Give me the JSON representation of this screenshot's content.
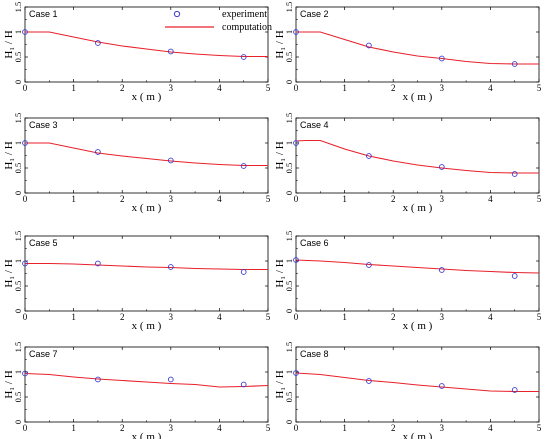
{
  "legend": {
    "experiment_label": "experiment",
    "computation_label": "computation",
    "placement": "top-center"
  },
  "colors": {
    "computation": "#e8202a",
    "experiment": "#3b3bd4",
    "axis": "#000000"
  },
  "chart_data": [
    {
      "type": "line",
      "title": "Case 1",
      "xlabel": "x ( m )",
      "ylabel": "H₁ / H",
      "xlim": [
        0,
        5
      ],
      "ylim": [
        0,
        1.5
      ],
      "xticks": [
        "0",
        "1",
        "2",
        "3",
        "4",
        "5"
      ],
      "yticks": [
        "0",
        "0.5",
        "1",
        "1.5"
      ],
      "series": [
        {
          "name": "computation",
          "x": [
            0,
            0.2,
            0.5,
            1,
            1.5,
            2,
            2.5,
            3,
            3.5,
            4,
            4.5,
            5
          ],
          "y": [
            1.0,
            1.0,
            1.0,
            0.9,
            0.8,
            0.72,
            0.66,
            0.6,
            0.56,
            0.53,
            0.51,
            0.51
          ]
        },
        {
          "name": "experiment",
          "x": [
            0,
            1.5,
            3,
            4.5
          ],
          "y": [
            1.0,
            0.78,
            0.61,
            0.5
          ]
        }
      ]
    },
    {
      "type": "line",
      "title": "Case 2",
      "xlabel": "x ( m )",
      "ylabel": "H₁ / H",
      "xlim": [
        0,
        5
      ],
      "ylim": [
        0,
        1.5
      ],
      "xticks": [
        "0",
        "1",
        "2",
        "3",
        "4",
        "5"
      ],
      "yticks": [
        "0",
        "0.5",
        "1",
        "1.5"
      ],
      "series": [
        {
          "name": "computation",
          "x": [
            0,
            0.2,
            0.5,
            1,
            1.5,
            2,
            2.5,
            3,
            3.5,
            4,
            4.5,
            5
          ],
          "y": [
            1.0,
            1.0,
            1.0,
            0.85,
            0.7,
            0.6,
            0.52,
            0.47,
            0.41,
            0.37,
            0.36,
            0.36
          ]
        },
        {
          "name": "experiment",
          "x": [
            0,
            1.5,
            3,
            4.5
          ],
          "y": [
            1.0,
            0.73,
            0.47,
            0.36
          ]
        }
      ]
    },
    {
      "type": "line",
      "title": "Case 3",
      "xlabel": "x ( m )",
      "ylabel": "H₁ / H",
      "xlim": [
        0,
        5
      ],
      "ylim": [
        0,
        1.5
      ],
      "xticks": [
        "0",
        "1",
        "2",
        "3",
        "4",
        "5"
      ],
      "yticks": [
        "0",
        "0.5",
        "1",
        "1.5"
      ],
      "series": [
        {
          "name": "computation",
          "x": [
            0,
            0.2,
            0.5,
            1,
            1.5,
            2,
            2.5,
            3,
            3.5,
            4,
            4.5,
            5
          ],
          "y": [
            1.0,
            1.0,
            1.0,
            0.9,
            0.8,
            0.74,
            0.69,
            0.64,
            0.6,
            0.57,
            0.55,
            0.55
          ]
        },
        {
          "name": "experiment",
          "x": [
            0,
            1.5,
            3,
            4.5
          ],
          "y": [
            1.0,
            0.82,
            0.65,
            0.54
          ]
        }
      ]
    },
    {
      "type": "line",
      "title": "Case 4",
      "xlabel": "x ( m )",
      "ylabel": "H₁ / H",
      "xlim": [
        0,
        5
      ],
      "ylim": [
        0,
        1.5
      ],
      "xticks": [
        "0",
        "1",
        "2",
        "3",
        "4",
        "5"
      ],
      "yticks": [
        "0",
        "0.5",
        "1",
        "1.5"
      ],
      "series": [
        {
          "name": "computation",
          "x": [
            0,
            0.2,
            0.5,
            1,
            1.5,
            2,
            2.5,
            3,
            3.5,
            4,
            4.5,
            5
          ],
          "y": [
            1.04,
            1.05,
            1.05,
            0.88,
            0.74,
            0.64,
            0.56,
            0.5,
            0.45,
            0.41,
            0.4,
            0.4
          ]
        },
        {
          "name": "experiment",
          "x": [
            0,
            1.5,
            3,
            4.5
          ],
          "y": [
            1.0,
            0.74,
            0.52,
            0.38
          ]
        }
      ]
    },
    {
      "type": "line",
      "title": "Case 5",
      "xlabel": "x ( m )",
      "ylabel": "H₁ / H",
      "xlim": [
        0,
        5
      ],
      "ylim": [
        0,
        1.5
      ],
      "xticks": [
        "0",
        "1",
        "2",
        "3",
        "4",
        "5"
      ],
      "yticks": [
        "0",
        "0.5",
        "1",
        "1.5"
      ],
      "series": [
        {
          "name": "computation",
          "x": [
            0,
            0.5,
            1,
            1.5,
            2,
            2.5,
            3,
            3.5,
            4,
            4.5,
            5
          ],
          "y": [
            0.95,
            0.95,
            0.94,
            0.92,
            0.9,
            0.88,
            0.87,
            0.85,
            0.84,
            0.83,
            0.83
          ]
        },
        {
          "name": "experiment",
          "x": [
            0,
            1.5,
            3,
            4.5
          ],
          "y": [
            0.95,
            0.95,
            0.88,
            0.78
          ]
        }
      ]
    },
    {
      "type": "line",
      "title": "Case 6",
      "xlabel": "x ( m )",
      "ylabel": "H₁ / H",
      "xlim": [
        0,
        5
      ],
      "ylim": [
        0,
        1.5
      ],
      "xticks": [
        "0",
        "1",
        "2",
        "3",
        "4",
        "5"
      ],
      "yticks": [
        "0",
        "0.5",
        "1",
        "1.5"
      ],
      "series": [
        {
          "name": "computation",
          "x": [
            0,
            0.5,
            1,
            1.5,
            2,
            2.5,
            3,
            3.5,
            4,
            4.5,
            5
          ],
          "y": [
            1.02,
            1.0,
            0.97,
            0.93,
            0.9,
            0.87,
            0.84,
            0.81,
            0.79,
            0.77,
            0.76
          ]
        },
        {
          "name": "experiment",
          "x": [
            0,
            1.5,
            3,
            4.5
          ],
          "y": [
            1.02,
            0.92,
            0.82,
            0.7
          ]
        }
      ]
    },
    {
      "type": "line",
      "title": "Case 7",
      "xlabel": "x ( m )",
      "ylabel": "H₁ / H",
      "xlim": [
        0,
        5
      ],
      "ylim": [
        0,
        1.5
      ],
      "xticks": [
        "0",
        "1",
        "2",
        "3",
        "4",
        "5"
      ],
      "yticks": [
        "0",
        "0.5",
        "1",
        "1.5"
      ],
      "series": [
        {
          "name": "computation",
          "x": [
            0,
            0.5,
            1,
            1.5,
            2,
            2.5,
            3,
            3.5,
            4,
            4.5,
            5
          ],
          "y": [
            0.97,
            0.95,
            0.9,
            0.86,
            0.83,
            0.8,
            0.77,
            0.75,
            0.7,
            0.71,
            0.73
          ]
        },
        {
          "name": "experiment",
          "x": [
            0,
            1.5,
            3,
            4.5
          ],
          "y": [
            0.97,
            0.85,
            0.85,
            0.75
          ]
        }
      ]
    },
    {
      "type": "line",
      "title": "Case 8",
      "xlabel": "x ( m )",
      "ylabel": "H₁ / H",
      "xlim": [
        0,
        5
      ],
      "ylim": [
        0,
        1.5
      ],
      "xticks": [
        "0",
        "1",
        "2",
        "3",
        "4",
        "5"
      ],
      "yticks": [
        "0",
        "0.5",
        "1",
        "1.5"
      ],
      "series": [
        {
          "name": "computation",
          "x": [
            0,
            0.5,
            1,
            1.5,
            2,
            2.5,
            3,
            3.5,
            4,
            4.5,
            5
          ],
          "y": [
            0.98,
            0.95,
            0.89,
            0.83,
            0.79,
            0.74,
            0.7,
            0.66,
            0.62,
            0.61,
            0.61
          ]
        },
        {
          "name": "experiment",
          "x": [
            0,
            1.5,
            3,
            4.5
          ],
          "y": [
            0.98,
            0.82,
            0.72,
            0.64
          ]
        }
      ]
    }
  ]
}
